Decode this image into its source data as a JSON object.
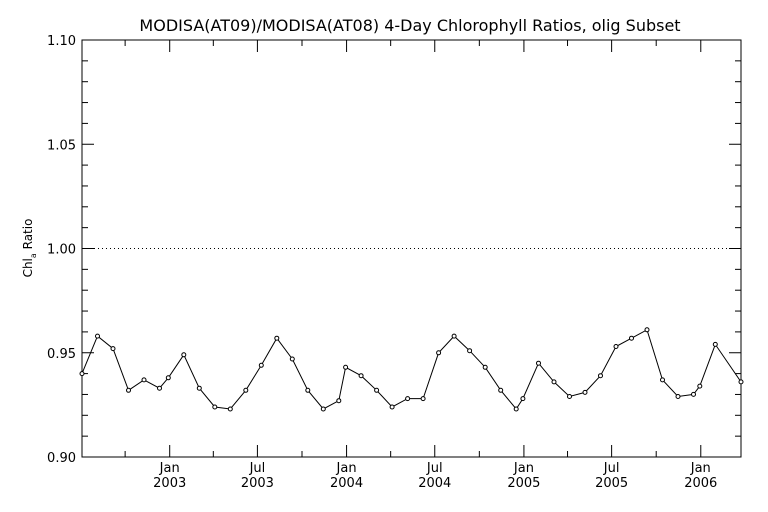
{
  "chart_data": {
    "type": "line",
    "title": "MODISA(AT09)/MODISA(AT08) 4-Day Chlorophyll Ratios, olig Subset",
    "ylabel_main": "Chl",
    "ylabel_sub": "a",
    "ylabel_rest": " Ratio",
    "xlabel": "",
    "ylim": [
      0.9,
      1.1
    ],
    "xlim": [
      "2002-07-04",
      "2006-03-25"
    ],
    "yticks": [
      "0.90",
      "0.95",
      "1.00",
      "1.05",
      "1.10"
    ],
    "xticks": [
      {
        "date": "2003-01-01",
        "month": "Jan",
        "year": "2003"
      },
      {
        "date": "2003-07-01",
        "month": "Jul",
        "year": "2003"
      },
      {
        "date": "2004-01-01",
        "month": "Jan",
        "year": "2004"
      },
      {
        "date": "2004-07-01",
        "month": "Jul",
        "year": "2004"
      },
      {
        "date": "2005-01-01",
        "month": "Jan",
        "year": "2005"
      },
      {
        "date": "2005-07-01",
        "month": "Jul",
        "year": "2005"
      },
      {
        "date": "2006-01-01",
        "month": "Jan",
        "year": "2006"
      }
    ],
    "reference_line": 1.0,
    "series": [
      {
        "x": [
          "2002-07-04",
          "2002-08-05",
          "2002-09-06",
          "2002-10-08",
          "2002-11-09",
          "2002-12-11",
          "2002-12-29",
          "2003-01-30",
          "2003-03-03",
          "2003-04-04",
          "2003-05-06",
          "2003-06-07",
          "2003-07-09",
          "2003-08-10",
          "2003-09-11",
          "2003-10-13",
          "2003-11-14",
          "2003-12-16",
          "2003-12-30",
          "2004-01-31",
          "2004-03-03",
          "2004-04-04",
          "2004-05-06",
          "2004-06-07",
          "2004-07-09",
          "2004-08-10",
          "2004-09-11",
          "2004-10-13",
          "2004-11-14",
          "2004-12-16",
          "2004-12-30",
          "2005-01-31",
          "2005-03-04",
          "2005-04-05",
          "2005-05-07",
          "2005-06-08",
          "2005-07-10",
          "2005-08-11",
          "2005-09-12",
          "2005-10-14",
          "2005-11-15",
          "2005-12-17",
          "2005-12-30",
          "2006-01-31",
          "2006-03-25"
        ],
        "y": [
          0.94,
          0.958,
          0.952,
          0.932,
          0.937,
          0.933,
          0.938,
          0.949,
          0.933,
          0.924,
          0.923,
          0.932,
          0.944,
          0.957,
          0.947,
          0.932,
          0.923,
          0.927,
          0.943,
          0.939,
          0.932,
          0.924,
          0.928,
          0.928,
          0.95,
          0.958,
          0.951,
          0.943,
          0.932,
          0.923,
          0.928,
          0.945,
          0.936,
          0.929,
          0.931,
          0.939,
          0.953,
          0.957,
          0.961,
          0.937,
          0.929,
          0.93,
          0.934,
          0.954,
          0.936
        ]
      }
    ]
  }
}
